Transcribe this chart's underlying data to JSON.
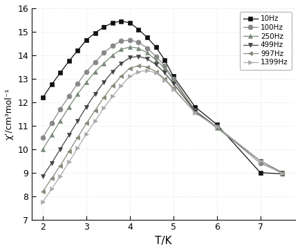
{
  "title": "",
  "xlabel": "T/K",
  "ylabel": "χ’/cm³mol⁻¹",
  "xlim": [
    1.75,
    7.8
  ],
  "ylim": [
    7,
    16
  ],
  "xticks": [
    2,
    3,
    4,
    5,
    6,
    7
  ],
  "yticks": [
    7,
    8,
    9,
    10,
    11,
    12,
    13,
    14,
    15,
    16
  ],
  "series": [
    {
      "label": "10Hz",
      "color": "#111111",
      "marker": "s",
      "markersize": 5,
      "linewidth": 0.9,
      "T": [
        2.0,
        2.2,
        2.4,
        2.6,
        2.8,
        3.0,
        3.2,
        3.4,
        3.6,
        3.8,
        4.0,
        4.2,
        4.4,
        4.6,
        4.8,
        5.0,
        5.5,
        6.0,
        7.0,
        7.5
      ],
      "chi": [
        12.2,
        12.75,
        13.25,
        13.75,
        14.2,
        14.65,
        14.95,
        15.2,
        15.38,
        15.45,
        15.38,
        15.1,
        14.75,
        14.35,
        13.8,
        13.1,
        11.8,
        11.05,
        9.0,
        8.95
      ]
    },
    {
      "label": "100Hz",
      "color": "#888888",
      "marker": "o",
      "markersize": 5,
      "linewidth": 0.9,
      "T": [
        2.0,
        2.2,
        2.4,
        2.6,
        2.8,
        3.0,
        3.2,
        3.4,
        3.6,
        3.8,
        4.0,
        4.2,
        4.4,
        4.6,
        4.8,
        5.0,
        5.5,
        6.0,
        7.0,
        7.5
      ],
      "chi": [
        10.5,
        11.1,
        11.7,
        12.25,
        12.8,
        13.3,
        13.7,
        14.1,
        14.4,
        14.6,
        14.65,
        14.55,
        14.3,
        13.95,
        13.55,
        13.0,
        11.65,
        10.95,
        9.4,
        9.0
      ]
    },
    {
      "label": "250Hz",
      "color": "#7a8a7a",
      "marker": "^",
      "markersize": 5,
      "linewidth": 0.9,
      "T": [
        2.0,
        2.2,
        2.4,
        2.6,
        2.8,
        3.0,
        3.2,
        3.4,
        3.6,
        3.8,
        4.0,
        4.2,
        4.4,
        4.6,
        4.8,
        5.0,
        5.5,
        6.0,
        7.0,
        7.5
      ],
      "chi": [
        10.0,
        10.6,
        11.2,
        11.8,
        12.35,
        12.85,
        13.3,
        13.65,
        14.0,
        14.25,
        14.35,
        14.3,
        14.1,
        13.8,
        13.45,
        12.95,
        11.6,
        10.9,
        9.5,
        9.0
      ]
    },
    {
      "label": "499Hz",
      "color": "#444444",
      "marker": "v",
      "markersize": 5,
      "linewidth": 0.9,
      "T": [
        2.0,
        2.2,
        2.4,
        2.6,
        2.8,
        3.0,
        3.2,
        3.4,
        3.6,
        3.8,
        4.0,
        4.2,
        4.4,
        4.6,
        4.8,
        5.0,
        5.5,
        6.0,
        7.0,
        7.5
      ],
      "chi": [
        8.85,
        9.4,
        10.0,
        10.6,
        11.2,
        11.8,
        12.35,
        12.85,
        13.3,
        13.65,
        13.9,
        13.95,
        13.85,
        13.6,
        13.25,
        12.8,
        11.6,
        10.95,
        9.5,
        9.0
      ]
    },
    {
      "label": "997Hz",
      "color": "#888878",
      "marker": "<",
      "markersize": 5,
      "linewidth": 0.9,
      "T": [
        2.0,
        2.2,
        2.4,
        2.6,
        2.8,
        3.0,
        3.2,
        3.4,
        3.6,
        3.8,
        4.0,
        4.2,
        4.4,
        4.6,
        4.8,
        5.0,
        5.5,
        6.0,
        7.0,
        7.5
      ],
      "chi": [
        8.2,
        8.75,
        9.3,
        9.9,
        10.5,
        11.1,
        11.65,
        12.2,
        12.7,
        13.1,
        13.45,
        13.55,
        13.5,
        13.3,
        13.0,
        12.6,
        11.55,
        10.95,
        9.5,
        9.0
      ]
    },
    {
      "label": "1399Hz",
      "color": "#aaaaaa",
      "marker": ">",
      "markersize": 5,
      "linewidth": 0.9,
      "T": [
        2.0,
        2.2,
        2.4,
        2.6,
        2.8,
        3.0,
        3.2,
        3.4,
        3.6,
        3.8,
        4.0,
        4.2,
        4.4,
        4.6,
        4.8,
        5.0,
        5.5,
        6.0,
        7.0,
        7.5
      ],
      "chi": [
        7.75,
        8.3,
        8.85,
        9.45,
        10.05,
        10.65,
        11.2,
        11.75,
        12.25,
        12.7,
        13.1,
        13.3,
        13.35,
        13.25,
        12.95,
        12.55,
        11.55,
        10.95,
        9.5,
        8.95
      ]
    }
  ],
  "legend_loc": "upper right",
  "background_color": "#ffffff",
  "dot_color": "#ccddcc",
  "figsize": [
    4.34,
    3.63
  ],
  "dpi": 100
}
